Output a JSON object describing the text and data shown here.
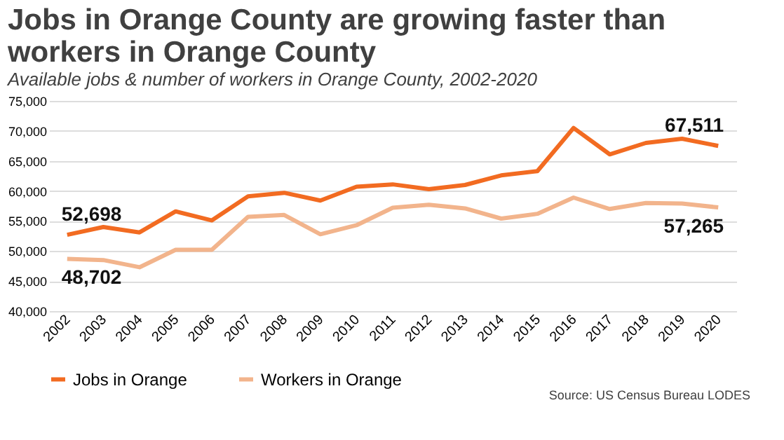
{
  "chart_data": {
    "type": "line",
    "title": "Jobs in Orange County are growing faster than workers in Orange County",
    "subtitle": "Available jobs & number of workers in Orange County, 2002-2020",
    "categories": [
      "2002",
      "2003",
      "2004",
      "2005",
      "2006",
      "2007",
      "2008",
      "2009",
      "2010",
      "2011",
      "2012",
      "2013",
      "2014",
      "2015",
      "2016",
      "2017",
      "2018",
      "2019",
      "2020"
    ],
    "series": [
      {
        "name": "Jobs in Orange",
        "color": "#f26b21",
        "values": [
          52698,
          54000,
          53100,
          56600,
          55100,
          59100,
          59700,
          58400,
          60700,
          61100,
          60300,
          61000,
          62600,
          63300,
          70500,
          66100,
          68000,
          68700,
          67511
        ],
        "value_labels": [
          "52,698",
          null,
          null,
          null,
          null,
          null,
          null,
          null,
          null,
          null,
          null,
          null,
          null,
          null,
          null,
          null,
          null,
          null,
          "67,511"
        ]
      },
      {
        "name": "Workers in Orange",
        "color": "#f2b48c",
        "values": [
          48702,
          48500,
          47300,
          50200,
          50200,
          55700,
          56000,
          52800,
          54300,
          57200,
          57700,
          57100,
          55400,
          56200,
          58900,
          57000,
          58000,
          57900,
          57265
        ],
        "value_labels": [
          "48,702",
          null,
          null,
          null,
          null,
          null,
          null,
          null,
          null,
          null,
          null,
          null,
          null,
          null,
          null,
          null,
          null,
          null,
          "57,265"
        ]
      }
    ],
    "ylim": [
      40000,
      75000
    ],
    "yticks": [
      {
        "value": 40000,
        "label": "40,000"
      },
      {
        "value": 45000,
        "label": "45,000"
      },
      {
        "value": 50000,
        "label": "50,000"
      },
      {
        "value": 55000,
        "label": "55,000"
      },
      {
        "value": 60000,
        "label": "60,000"
      },
      {
        "value": 65000,
        "label": "65,000"
      },
      {
        "value": 70000,
        "label": "70,000"
      },
      {
        "value": 75000,
        "label": "75,000"
      }
    ],
    "grid": "y",
    "legend": "bottom",
    "marker": "none",
    "line_style": "solid",
    "annotations": [
      "Source: US Census Bureau LODES"
    ]
  }
}
